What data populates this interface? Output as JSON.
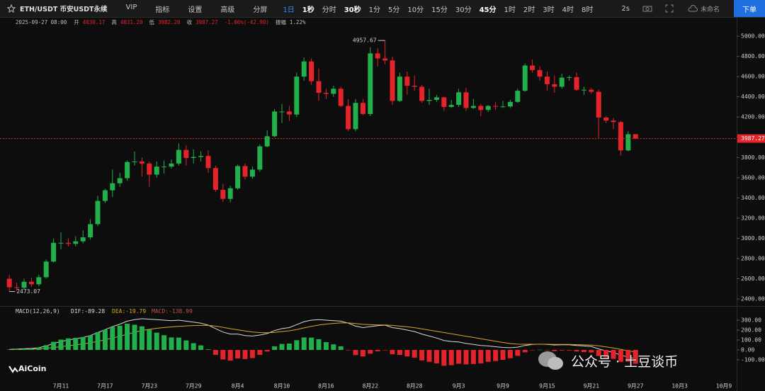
{
  "toolbar": {
    "symbol": "ETH/USDT 币安USDT永续",
    "tools": [
      "VIP",
      "指标",
      "设置",
      "高级",
      "分屏"
    ],
    "intervals": [
      "1日",
      "1秒",
      "分时",
      "30秒",
      "1分",
      "5分",
      "10分",
      "15分",
      "30分",
      "45分",
      "1时",
      "2时",
      "3时",
      "4时",
      "8时"
    ],
    "refresh": "2s",
    "layout": "未命名",
    "order": "下单"
  },
  "watermark": "AiCoin",
  "overlay": "公众号 · 土豆谈币",
  "chart_data": [
    {
      "type": "candlestick",
      "info": [
        "2025-09-27 08:00",
        "开",
        "4030.17",
        "高",
        "4031.20",
        "低",
        "3982.20",
        "收",
        "3987.27",
        "-1.06%(-42.90)",
        "振幅",
        "1.22%"
      ],
      "categories": [
        null,
        null,
        null,
        null,
        null,
        null,
        null,
        "7月11",
        null,
        null,
        null,
        null,
        null,
        "7月17",
        null,
        null,
        null,
        null,
        null,
        "7月23",
        null,
        null,
        null,
        null,
        null,
        "7月29",
        null,
        null,
        null,
        null,
        null,
        "8月4",
        null,
        null,
        null,
        null,
        null,
        "8月10",
        null,
        null,
        null,
        null,
        null,
        "8月16",
        null,
        null,
        null,
        null,
        null,
        "8月22",
        null,
        null,
        null,
        null,
        null,
        "8月28",
        null,
        null,
        null,
        null,
        null,
        "9月3",
        null,
        null,
        null,
        null,
        null,
        "9月9",
        null,
        null,
        null,
        null,
        null,
        "9月15",
        null,
        null,
        null,
        null,
        null,
        "9月21",
        null,
        null,
        null,
        null,
        null,
        "9月27",
        null,
        null,
        null,
        null,
        null,
        "10月3",
        null,
        null,
        null,
        null,
        null,
        "10月9",
        null
      ],
      "open": [
        2600,
        2515,
        2510,
        2570,
        2545,
        2615,
        2770,
        2955,
        2955,
        2945,
        2970,
        3010,
        3140,
        3370,
        3475,
        3545,
        3595,
        3755,
        3760,
        3740,
        3630,
        3710,
        3710,
        3740,
        3875,
        3795,
        3805,
        3815,
        3695,
        3480,
        3390,
        3495,
        3715,
        3610,
        3680,
        3910,
        4010,
        4255,
        4255,
        4225,
        4600,
        4750,
        4555,
        4440,
        4430,
        4480,
        4310,
        4080,
        4340,
        4230,
        4830,
        4780,
        4760,
        4360,
        4600,
        4510,
        4500,
        4360,
        4370,
        4395,
        4300,
        4320,
        4445,
        4290,
        4310,
        4270,
        4310,
        4305,
        4305,
        4350,
        4460,
        4710,
        4665,
        4600,
        4525,
        4500,
        4590,
        4595,
        4470,
        4470,
        4450,
        4195,
        4165,
        4150,
        3870,
        4030.17,
        null,
        null,
        null,
        null,
        null,
        null,
        null,
        null,
        null,
        null,
        null,
        null,
        null
      ],
      "high": [
        2640,
        2560,
        2600,
        2610,
        2640,
        2790,
        3000,
        3060,
        3000,
        3020,
        3080,
        3190,
        3420,
        3490,
        3680,
        3650,
        3770,
        3860,
        3800,
        3760,
        3760,
        3770,
        3780,
        3940,
        3920,
        3880,
        3860,
        3870,
        3720,
        3540,
        3520,
        3730,
        3740,
        3710,
        3930,
        4070,
        4280,
        4330,
        4310,
        4640,
        4790,
        4780,
        4680,
        4480,
        4510,
        4500,
        4380,
        4380,
        4380,
        4890,
        4880,
        4957.67,
        4800,
        4640,
        4650,
        4610,
        4520,
        4480,
        4420,
        4400,
        4370,
        4480,
        4490,
        4380,
        4330,
        4320,
        4350,
        4360,
        4370,
        4480,
        4730,
        4770,
        4700,
        4650,
        4610,
        4630,
        4610,
        4640,
        4500,
        4490,
        4470,
        4210,
        4190,
        4160,
        4060,
        4031.2,
        null,
        null,
        null,
        null,
        null,
        null,
        null,
        null,
        null,
        null,
        null,
        null,
        null
      ],
      "low": [
        2473.07,
        2480,
        2495,
        2520,
        2525,
        2600,
        2760,
        2890,
        2920,
        2920,
        2950,
        2990,
        3120,
        3350,
        3410,
        3510,
        3570,
        3720,
        3610,
        3510,
        3600,
        3640,
        3690,
        3720,
        3720,
        3740,
        3760,
        3650,
        3460,
        3360,
        3355,
        3480,
        3580,
        3590,
        3660,
        3900,
        4000,
        4140,
        4160,
        4200,
        4560,
        4520,
        4360,
        4380,
        4400,
        4300,
        4060,
        4060,
        4220,
        4210,
        4700,
        4720,
        4320,
        4350,
        4420,
        4460,
        4340,
        4320,
        4350,
        4260,
        4290,
        4300,
        4260,
        4280,
        4210,
        4250,
        4270,
        4290,
        4290,
        4340,
        4450,
        4640,
        4560,
        4460,
        4440,
        4480,
        4560,
        4460,
        4420,
        4430,
        3990,
        4140,
        4080,
        3820,
        3860,
        3982.2,
        null,
        null,
        null,
        null,
        null,
        null,
        null,
        null,
        null,
        null,
        null,
        null,
        null
      ],
      "close": [
        2515,
        2510,
        2570,
        2545,
        2615,
        2770,
        2955,
        2955,
        2945,
        2970,
        3010,
        3140,
        3370,
        3475,
        3545,
        3595,
        3755,
        3760,
        3740,
        3630,
        3710,
        3710,
        3740,
        3875,
        3795,
        3805,
        3815,
        3695,
        3480,
        3390,
        3495,
        3715,
        3610,
        3680,
        3910,
        4010,
        4255,
        4255,
        4225,
        4600,
        4750,
        4555,
        4440,
        4430,
        4480,
        4310,
        4080,
        4340,
        4230,
        4830,
        4780,
        4760,
        4360,
        4600,
        4510,
        4500,
        4360,
        4370,
        4395,
        4300,
        4320,
        4445,
        4290,
        4310,
        4270,
        4310,
        4305,
        4305,
        4350,
        4460,
        4710,
        4665,
        4600,
        4525,
        4500,
        4590,
        4595,
        4470,
        4470,
        4450,
        4195,
        4165,
        4150,
        3870,
        4030.17,
        3987.27,
        null,
        null,
        null,
        null,
        null,
        null,
        null,
        null,
        null,
        null,
        null,
        null,
        null
      ],
      "up_color": "#21b04b",
      "down_color": "#e5232a",
      "ylim": [
        2330,
        5120
      ],
      "yticks": [
        {
          "value": 2400,
          "label": "2400.00"
        },
        {
          "value": 2600,
          "label": "2600.00"
        },
        {
          "value": 2800,
          "label": "2800.00"
        },
        {
          "value": 3000,
          "label": "3000.00"
        },
        {
          "value": 3200,
          "label": "3200.00"
        },
        {
          "value": 3400,
          "label": "3400.00"
        },
        {
          "value": 3600,
          "label": "3600.00"
        },
        {
          "value": 3800,
          "label": "3800.00"
        },
        {
          "value": 4000,
          "label": "4000.00"
        },
        {
          "value": 4200,
          "label": "4200.00"
        },
        {
          "value": 4400,
          "label": "4400.00"
        },
        {
          "value": 4600,
          "label": "4600.00"
        },
        {
          "value": 4800,
          "label": "4800.00"
        },
        {
          "value": 5000,
          "label": "5000.00"
        }
      ],
      "grid": false
    },
    {
      "type": "macd",
      "legend": [
        "MACD(12,26,9)",
        "DIF:-89.28",
        "DEA:-19.79",
        "MACD:-138.99"
      ],
      "series": [
        {
          "color": "#d9d9d9",
          "values": [
            5,
            8,
            12,
            15,
            22,
            40,
            65,
            85,
            100,
            112,
            125,
            145,
            175,
            205,
            235,
            260,
            290,
            305,
            315,
            310,
            305,
            300,
            295,
            300,
            290,
            280,
            270,
            250,
            215,
            180,
            160,
            160,
            145,
            140,
            150,
            165,
            195,
            215,
            225,
            255,
            285,
            300,
            305,
            300,
            295,
            290,
            270,
            240,
            225,
            235,
            245,
            250,
            225,
            215,
            200,
            185,
            160,
            140,
            120,
            95,
            85,
            80,
            65,
            55,
            45,
            40,
            32,
            25,
            22,
            28,
            45,
            55,
            58,
            55,
            50,
            52,
            52,
            45,
            40,
            35,
            10,
            -10,
            -25,
            -55,
            -70,
            -89.28,
            null,
            null,
            null,
            null,
            null,
            null,
            null,
            null,
            null,
            null,
            null,
            null,
            null
          ]
        },
        {
          "color": "#d9a62a",
          "values": [
            3,
            4,
            6,
            8,
            10,
            16,
            24,
            33,
            42,
            51,
            60,
            72,
            86,
            103,
            120,
            138,
            158,
            178,
            196,
            208,
            218,
            226,
            232,
            238,
            242,
            246,
            247,
            247,
            240,
            228,
            214,
            203,
            191,
            181,
            175,
            173,
            177,
            185,
            193,
            206,
            222,
            238,
            251,
            261,
            267,
            272,
            272,
            266,
            258,
            254,
            252,
            252,
            247,
            240,
            233,
            224,
            213,
            200,
            188,
            175,
            162,
            150,
            138,
            126,
            113,
            100,
            88,
            75,
            64,
            58,
            57,
            57,
            57,
            57,
            56,
            55,
            55,
            53,
            51,
            48,
            41,
            31,
            20,
            5,
            -10,
            -19.79,
            null,
            null,
            null,
            null,
            null,
            null,
            null,
            null,
            null,
            null,
            null,
            null,
            null
          ]
        },
        {
          "type": "histogram",
          "up_color": "#21b04b",
          "down_color": "#e5232a",
          "values": [
            4,
            8,
            12,
            14,
            24,
            48,
            82,
            104,
            116,
            122,
            130,
            146,
            178,
            204,
            230,
            244,
            264,
            254,
            238,
            204,
            174,
            148,
            126,
            124,
            96,
            68,
            46,
            6,
            -50,
            -96,
            -108,
            -86,
            -92,
            -82,
            -50,
            -16,
            36,
            60,
            64,
            98,
            126,
            124,
            108,
            78,
            56,
            36,
            -4,
            -52,
            -66,
            -38,
            -14,
            -4,
            -44,
            -50,
            -66,
            -78,
            -106,
            -120,
            -136,
            -160,
            -154,
            -140,
            -146,
            -142,
            -136,
            -120,
            -112,
            -100,
            -84,
            -60,
            -24,
            -4,
            2,
            -4,
            -12,
            -6,
            -6,
            -16,
            -22,
            -26,
            -62,
            -82,
            -90,
            -120,
            -120,
            -138.99,
            null,
            null,
            null,
            null,
            null,
            null,
            null,
            null,
            null,
            null,
            null,
            null,
            null
          ]
        }
      ],
      "legend_colors": [
        "#cfcfcf",
        "#d9d9d9",
        "#d9a62a",
        "#c0504d"
      ],
      "ylim": [
        -300,
        400
      ],
      "yticks": [
        {
          "value": -100,
          "label": "-100.00"
        },
        {
          "value": 0,
          "label": "0.00"
        },
        {
          "value": 100,
          "label": "100.00"
        },
        {
          "value": 200,
          "label": "200.00"
        },
        {
          "value": 300,
          "label": "300.00"
        }
      ]
    }
  ]
}
